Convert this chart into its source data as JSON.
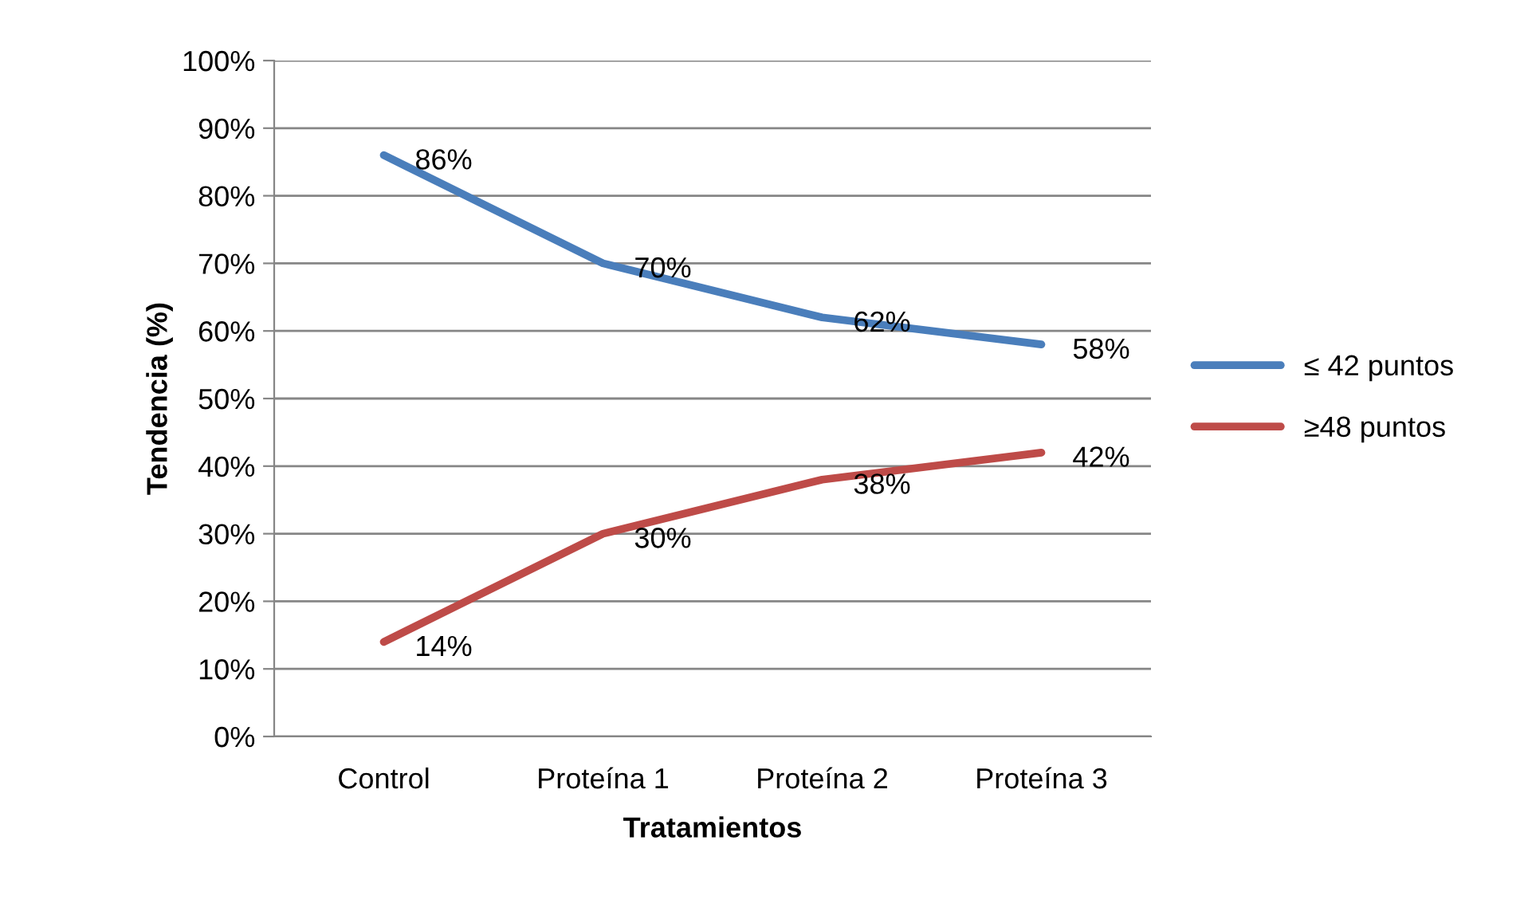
{
  "chart_data": {
    "type": "line",
    "xlabel": "Tratamientos",
    "ylabel": "Tendencia (%)",
    "categories": [
      "Control",
      "Proteína 1",
      "Proteína 2",
      "Proteína 3"
    ],
    "series": [
      {
        "name": "≤ 42 puntos",
        "color": "#4a7ebb",
        "values": [
          86,
          70,
          62,
          58
        ],
        "value_labels": [
          "86%",
          "70%",
          "62%",
          "58%"
        ]
      },
      {
        "name": "≥48 puntos",
        "color": "#be4b48",
        "values": [
          14,
          30,
          38,
          42
        ],
        "value_labels": [
          "14%",
          "30%",
          "38%",
          "42%"
        ]
      }
    ],
    "ylim": [
      0,
      100
    ],
    "yticks": [
      {
        "value": 0,
        "label": "0%"
      },
      {
        "value": 10,
        "label": "10%"
      },
      {
        "value": 20,
        "label": "20%"
      },
      {
        "value": 30,
        "label": "30%"
      },
      {
        "value": 40,
        "label": "40%"
      },
      {
        "value": 50,
        "label": "50%"
      },
      {
        "value": 60,
        "label": "60%"
      },
      {
        "value": 70,
        "label": "70%"
      },
      {
        "value": 80,
        "label": "80%"
      },
      {
        "value": 90,
        "label": "90%"
      },
      {
        "value": 100,
        "label": "100%"
      }
    ],
    "grid": "y",
    "legend": "right",
    "marker": "none",
    "line_style": "solid"
  }
}
